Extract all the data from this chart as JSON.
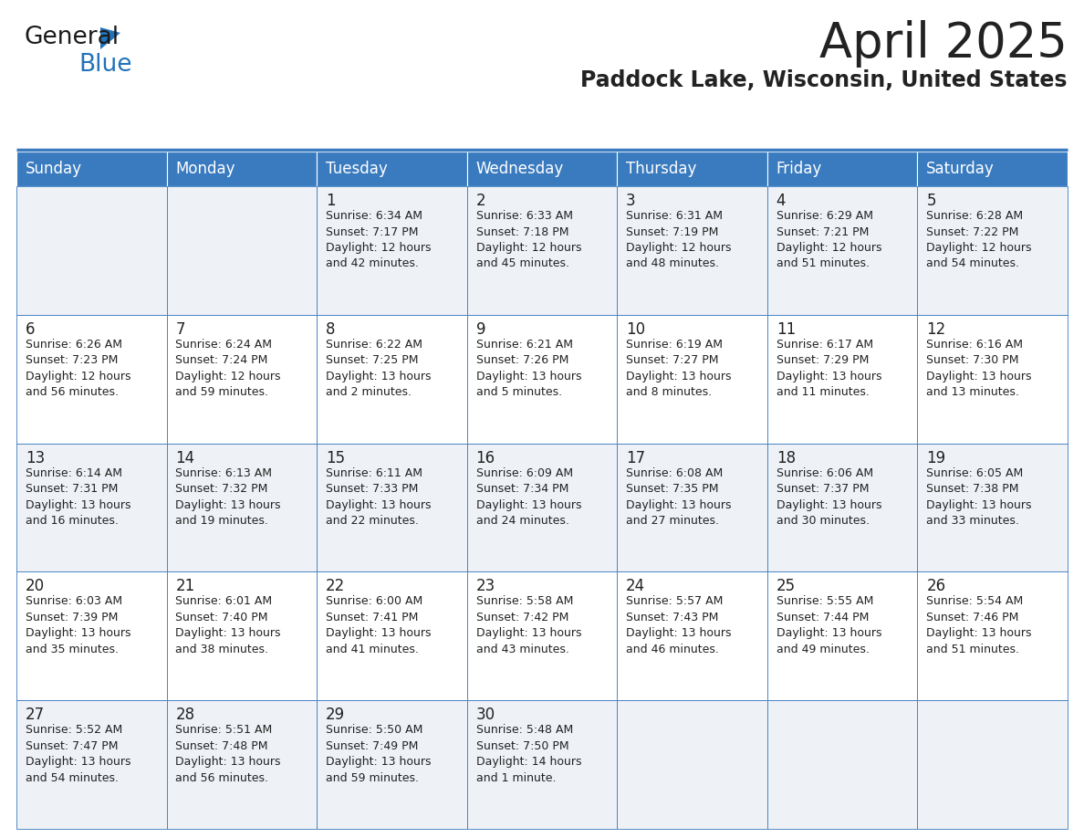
{
  "title": "April 2025",
  "subtitle": "Paddock Lake, Wisconsin, United States",
  "header_color": "#3a7bbf",
  "header_text_color": "#ffffff",
  "cell_bg_even": "#eef2f7",
  "cell_bg_odd": "#ffffff",
  "border_color": "#3a7bbf",
  "text_color": "#222222",
  "days_of_week": [
    "Sunday",
    "Monday",
    "Tuesday",
    "Wednesday",
    "Thursday",
    "Friday",
    "Saturday"
  ],
  "calendar": [
    [
      {
        "day": "",
        "info": ""
      },
      {
        "day": "",
        "info": ""
      },
      {
        "day": "1",
        "info": "Sunrise: 6:34 AM\nSunset: 7:17 PM\nDaylight: 12 hours\nand 42 minutes."
      },
      {
        "day": "2",
        "info": "Sunrise: 6:33 AM\nSunset: 7:18 PM\nDaylight: 12 hours\nand 45 minutes."
      },
      {
        "day": "3",
        "info": "Sunrise: 6:31 AM\nSunset: 7:19 PM\nDaylight: 12 hours\nand 48 minutes."
      },
      {
        "day": "4",
        "info": "Sunrise: 6:29 AM\nSunset: 7:21 PM\nDaylight: 12 hours\nand 51 minutes."
      },
      {
        "day": "5",
        "info": "Sunrise: 6:28 AM\nSunset: 7:22 PM\nDaylight: 12 hours\nand 54 minutes."
      }
    ],
    [
      {
        "day": "6",
        "info": "Sunrise: 6:26 AM\nSunset: 7:23 PM\nDaylight: 12 hours\nand 56 minutes."
      },
      {
        "day": "7",
        "info": "Sunrise: 6:24 AM\nSunset: 7:24 PM\nDaylight: 12 hours\nand 59 minutes."
      },
      {
        "day": "8",
        "info": "Sunrise: 6:22 AM\nSunset: 7:25 PM\nDaylight: 13 hours\nand 2 minutes."
      },
      {
        "day": "9",
        "info": "Sunrise: 6:21 AM\nSunset: 7:26 PM\nDaylight: 13 hours\nand 5 minutes."
      },
      {
        "day": "10",
        "info": "Sunrise: 6:19 AM\nSunset: 7:27 PM\nDaylight: 13 hours\nand 8 minutes."
      },
      {
        "day": "11",
        "info": "Sunrise: 6:17 AM\nSunset: 7:29 PM\nDaylight: 13 hours\nand 11 minutes."
      },
      {
        "day": "12",
        "info": "Sunrise: 6:16 AM\nSunset: 7:30 PM\nDaylight: 13 hours\nand 13 minutes."
      }
    ],
    [
      {
        "day": "13",
        "info": "Sunrise: 6:14 AM\nSunset: 7:31 PM\nDaylight: 13 hours\nand 16 minutes."
      },
      {
        "day": "14",
        "info": "Sunrise: 6:13 AM\nSunset: 7:32 PM\nDaylight: 13 hours\nand 19 minutes."
      },
      {
        "day": "15",
        "info": "Sunrise: 6:11 AM\nSunset: 7:33 PM\nDaylight: 13 hours\nand 22 minutes."
      },
      {
        "day": "16",
        "info": "Sunrise: 6:09 AM\nSunset: 7:34 PM\nDaylight: 13 hours\nand 24 minutes."
      },
      {
        "day": "17",
        "info": "Sunrise: 6:08 AM\nSunset: 7:35 PM\nDaylight: 13 hours\nand 27 minutes."
      },
      {
        "day": "18",
        "info": "Sunrise: 6:06 AM\nSunset: 7:37 PM\nDaylight: 13 hours\nand 30 minutes."
      },
      {
        "day": "19",
        "info": "Sunrise: 6:05 AM\nSunset: 7:38 PM\nDaylight: 13 hours\nand 33 minutes."
      }
    ],
    [
      {
        "day": "20",
        "info": "Sunrise: 6:03 AM\nSunset: 7:39 PM\nDaylight: 13 hours\nand 35 minutes."
      },
      {
        "day": "21",
        "info": "Sunrise: 6:01 AM\nSunset: 7:40 PM\nDaylight: 13 hours\nand 38 minutes."
      },
      {
        "day": "22",
        "info": "Sunrise: 6:00 AM\nSunset: 7:41 PM\nDaylight: 13 hours\nand 41 minutes."
      },
      {
        "day": "23",
        "info": "Sunrise: 5:58 AM\nSunset: 7:42 PM\nDaylight: 13 hours\nand 43 minutes."
      },
      {
        "day": "24",
        "info": "Sunrise: 5:57 AM\nSunset: 7:43 PM\nDaylight: 13 hours\nand 46 minutes."
      },
      {
        "day": "25",
        "info": "Sunrise: 5:55 AM\nSunset: 7:44 PM\nDaylight: 13 hours\nand 49 minutes."
      },
      {
        "day": "26",
        "info": "Sunrise: 5:54 AM\nSunset: 7:46 PM\nDaylight: 13 hours\nand 51 minutes."
      }
    ],
    [
      {
        "day": "27",
        "info": "Sunrise: 5:52 AM\nSunset: 7:47 PM\nDaylight: 13 hours\nand 54 minutes."
      },
      {
        "day": "28",
        "info": "Sunrise: 5:51 AM\nSunset: 7:48 PM\nDaylight: 13 hours\nand 56 minutes."
      },
      {
        "day": "29",
        "info": "Sunrise: 5:50 AM\nSunset: 7:49 PM\nDaylight: 13 hours\nand 59 minutes."
      },
      {
        "day": "30",
        "info": "Sunrise: 5:48 AM\nSunset: 7:50 PM\nDaylight: 14 hours\nand 1 minute."
      },
      {
        "day": "",
        "info": ""
      },
      {
        "day": "",
        "info": ""
      },
      {
        "day": "",
        "info": ""
      }
    ]
  ],
  "logo_color_general": "#1a1a1a",
  "logo_color_blue": "#2272b9",
  "logo_color_triangle": "#2272b9",
  "title_fontsize": 38,
  "subtitle_fontsize": 17,
  "header_fontsize": 12,
  "day_num_fontsize": 12,
  "info_fontsize": 9
}
